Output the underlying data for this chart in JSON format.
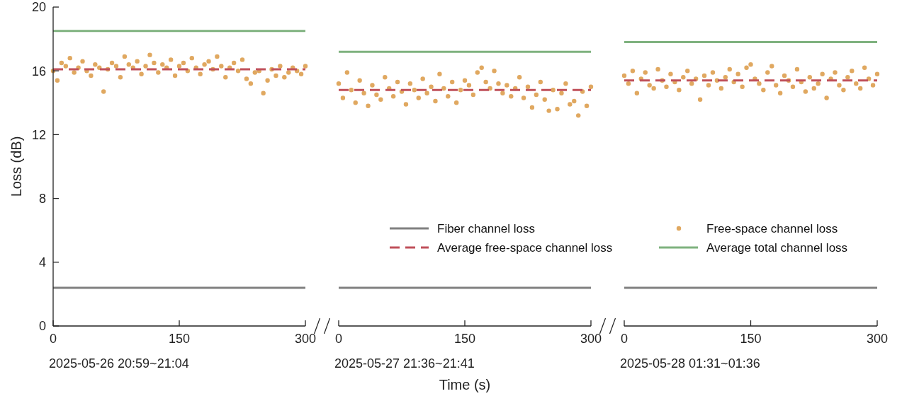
{
  "chart_data": [
    {
      "type": "line",
      "ylabel": "Loss (dB)",
      "xlabel": "2025-05-26 20:59~21:04",
      "xlim": [
        0,
        300
      ],
      "xticks": [
        0,
        150,
        300
      ],
      "ylim": [
        0,
        20
      ],
      "yticks": [
        0,
        4,
        8,
        12,
        16,
        20
      ],
      "series": [
        {
          "color": "#808080",
          "x": [
            0,
            300
          ],
          "values": [
            2.4,
            2.4
          ]
        },
        {
          "color": "#c0505a",
          "line_style": "dashed",
          "x": [
            0,
            300
          ],
          "values": [
            16.1,
            16.1
          ]
        },
        {
          "type": "scatter",
          "color": "#e0a860",
          "marker": "circle",
          "x": [
            0,
            5,
            10,
            15,
            20,
            25,
            30,
            35,
            40,
            45,
            50,
            55,
            60,
            65,
            70,
            75,
            80,
            85,
            90,
            95,
            100,
            105,
            110,
            115,
            120,
            125,
            130,
            135,
            140,
            145,
            150,
            155,
            160,
            165,
            170,
            175,
            180,
            185,
            190,
            195,
            200,
            205,
            210,
            215,
            220,
            225,
            230,
            235,
            240,
            245,
            250,
            255,
            260,
            265,
            270,
            275,
            280,
            285,
            290,
            295,
            300
          ],
          "values": [
            16.0,
            15.4,
            16.5,
            16.3,
            16.8,
            15.9,
            16.2,
            16.6,
            16.0,
            15.7,
            16.4,
            16.2,
            14.7,
            16.1,
            16.5,
            16.3,
            15.6,
            16.9,
            16.4,
            16.2,
            16.6,
            15.8,
            16.3,
            17.0,
            16.5,
            15.9,
            16.4,
            16.2,
            16.7,
            15.7,
            16.3,
            16.5,
            16.0,
            16.8,
            16.2,
            15.8,
            16.4,
            16.6,
            16.1,
            16.9,
            16.3,
            15.6,
            16.2,
            16.5,
            16.0,
            16.7,
            15.5,
            15.2,
            15.9,
            16.0,
            14.6,
            15.4,
            16.1,
            15.7,
            16.3,
            15.6,
            15.9,
            16.2,
            16.0,
            15.8,
            16.3
          ]
        },
        {
          "color": "#7fb27f",
          "x": [
            0,
            300
          ],
          "values": [
            18.5,
            18.5
          ]
        }
      ]
    },
    {
      "type": "line",
      "xlabel": "2025-05-27 21:36~21:41",
      "annotations": [
        "Time (s)"
      ],
      "xlim": [
        0,
        300
      ],
      "xticks": [
        0,
        150,
        300
      ],
      "ylim": [
        0,
        20
      ],
      "tick_labels": "x",
      "legend": "bottom right",
      "series": [
        {
          "name": "Fiber channel loss",
          "color": "#808080",
          "x": [
            0,
            300
          ],
          "values": [
            2.4,
            2.4
          ]
        },
        {
          "name": "Average free-space channel loss",
          "color": "#c0505a",
          "line_style": "dashed",
          "x": [
            0,
            300
          ],
          "values": [
            14.8,
            14.8
          ]
        },
        {
          "name": "Free-space channel loss",
          "type": "scatter",
          "color": "#e0a860",
          "marker": "circle",
          "x": [
            0,
            5,
            10,
            15,
            20,
            25,
            30,
            35,
            40,
            45,
            50,
            55,
            60,
            65,
            70,
            75,
            80,
            85,
            90,
            95,
            100,
            105,
            110,
            115,
            120,
            125,
            130,
            135,
            140,
            145,
            150,
            155,
            160,
            165,
            170,
            175,
            180,
            185,
            190,
            195,
            200,
            205,
            210,
            215,
            220,
            225,
            230,
            235,
            240,
            245,
            250,
            255,
            260,
            265,
            270,
            275,
            280,
            285,
            290,
            295,
            300
          ],
          "values": [
            15.2,
            14.3,
            15.9,
            14.8,
            14.0,
            15.4,
            14.6,
            13.8,
            15.1,
            14.5,
            14.2,
            15.6,
            14.9,
            14.4,
            15.3,
            14.7,
            13.9,
            15.2,
            14.8,
            14.3,
            15.5,
            14.6,
            15.0,
            14.1,
            15.8,
            14.9,
            14.4,
            15.3,
            14.0,
            14.8,
            15.4,
            15.1,
            14.5,
            15.9,
            16.2,
            15.3,
            14.9,
            16.0,
            15.2,
            14.6,
            15.1,
            14.4,
            14.9,
            15.6,
            14.3,
            15.0,
            13.7,
            14.5,
            15.3,
            14.2,
            13.5,
            14.8,
            13.6,
            14.6,
            15.2,
            13.9,
            14.1,
            13.2,
            14.7,
            13.8,
            15.0
          ]
        },
        {
          "name": "Average total channel loss",
          "color": "#7fb27f",
          "x": [
            0,
            300
          ],
          "values": [
            17.2,
            17.2
          ]
        }
      ]
    },
    {
      "type": "line",
      "xlabel": "2025-05-28 01:31~01:36",
      "xlim": [
        0,
        300
      ],
      "xticks": [
        0,
        150,
        300
      ],
      "ylim": [
        0,
        20
      ],
      "tick_labels": "x",
      "series": [
        {
          "color": "#808080",
          "x": [
            0,
            300
          ],
          "values": [
            2.4,
            2.4
          ]
        },
        {
          "color": "#c0505a",
          "line_style": "dashed",
          "x": [
            0,
            300
          ],
          "values": [
            15.4,
            15.4
          ]
        },
        {
          "type": "scatter",
          "color": "#e0a860",
          "marker": "circle",
          "x": [
            0,
            5,
            10,
            15,
            20,
            25,
            30,
            35,
            40,
            45,
            50,
            55,
            60,
            65,
            70,
            75,
            80,
            85,
            90,
            95,
            100,
            105,
            110,
            115,
            120,
            125,
            130,
            135,
            140,
            145,
            150,
            155,
            160,
            165,
            170,
            175,
            180,
            185,
            190,
            195,
            200,
            205,
            210,
            215,
            220,
            225,
            230,
            235,
            240,
            245,
            250,
            255,
            260,
            265,
            270,
            275,
            280,
            285,
            290,
            295,
            300
          ],
          "values": [
            15.7,
            15.2,
            16.0,
            14.6,
            15.5,
            15.9,
            15.1,
            14.9,
            16.1,
            15.4,
            15.0,
            15.8,
            15.3,
            14.8,
            15.6,
            16.0,
            15.2,
            15.5,
            14.2,
            15.7,
            15.1,
            15.9,
            15.4,
            14.9,
            15.6,
            16.1,
            15.3,
            15.8,
            15.0,
            16.2,
            16.4,
            15.5,
            15.2,
            14.8,
            15.9,
            16.3,
            15.1,
            14.6,
            15.7,
            15.4,
            15.0,
            16.1,
            15.3,
            14.7,
            15.6,
            14.9,
            15.2,
            15.8,
            14.3,
            15.5,
            15.9,
            15.1,
            14.8,
            15.6,
            16.0,
            15.2,
            14.9,
            16.2,
            15.5,
            15.1,
            15.8
          ]
        },
        {
          "color": "#7fb27f",
          "x": [
            0,
            300
          ],
          "values": [
            17.8,
            17.8
          ]
        }
      ]
    }
  ]
}
